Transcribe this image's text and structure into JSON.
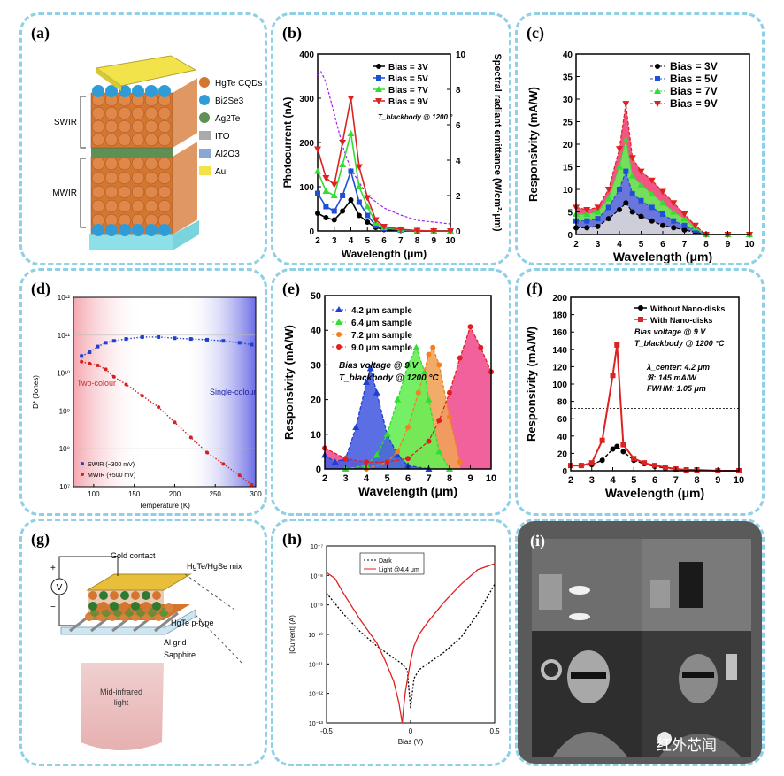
{
  "panels": {
    "a": {
      "label": "(a)",
      "legend": [
        "HgTe CQDs",
        "Bi2Se3",
        "Ag2Te",
        "ITO",
        "Al2O3",
        "Au"
      ],
      "legend_colors": [
        "#d4762f",
        "#2f9cd8",
        "#5e8f55",
        "#aaaaaa",
        "#8aa6d2",
        "#f3e34b"
      ],
      "side_labels": [
        "SWIR",
        "MWIR"
      ]
    },
    "g": {
      "label": "(g)",
      "labels": [
        "Gold contact",
        "HgTe/HgSe mix",
        "HgTe p-type",
        "Al grid",
        "Sapphire",
        "Mid-infrared light",
        "V",
        "+",
        "−"
      ]
    },
    "i": {
      "label": "(i)"
    }
  },
  "watermark": "红外芯闻",
  "chart_data": [
    {
      "id": "b",
      "label": "(b)",
      "type": "line",
      "xlabel": "Wavelength (μm)",
      "ylabel": "Photocurrent (nA)",
      "y2label": "Spectral radiant emittance (W/cm²·μm)",
      "annotation": "T_blackbody @ 1200 °",
      "xlim": [
        2,
        10
      ],
      "ylim": [
        0,
        400
      ],
      "y2lim": [
        0,
        10
      ],
      "xticks": [
        2,
        3,
        4,
        5,
        6,
        7,
        8,
        9,
        10
      ],
      "yticks": [
        0,
        100,
        200,
        300,
        400
      ],
      "y2ticks": [
        0,
        2,
        4,
        6,
        8,
        10
      ],
      "x": [
        2.0,
        2.5,
        3.0,
        3.5,
        4.0,
        4.5,
        5.0,
        5.5,
        6.0,
        7.0,
        8.0,
        9.0,
        10.0
      ],
      "series": [
        {
          "name": "Bias = 3V",
          "color": "#000000",
          "values": [
            40,
            30,
            25,
            45,
            70,
            35,
            20,
            8,
            3,
            1,
            0,
            0,
            0
          ]
        },
        {
          "name": "Bias = 5V",
          "color": "#1f4fd6",
          "values": [
            85,
            55,
            45,
            80,
            135,
            65,
            35,
            12,
            5,
            2,
            0,
            0,
            0
          ]
        },
        {
          "name": "Bias = 7V",
          "color": "#33dd33",
          "values": [
            135,
            90,
            80,
            150,
            220,
            100,
            55,
            18,
            8,
            3,
            1,
            0,
            0
          ]
        },
        {
          "name": "Bias = 9V",
          "color": "#dd2222",
          "values": [
            185,
            120,
            105,
            200,
            300,
            145,
            75,
            25,
            10,
            4,
            1,
            0,
            0
          ]
        }
      ],
      "y2_series": {
        "name": "emittance",
        "color": "#a020f0",
        "x": [
          2.0,
          2.2,
          2.5,
          3.0,
          3.5,
          4.0,
          5.0,
          6.0,
          7.0,
          8.0,
          9.0,
          10.0
        ],
        "values": [
          8.8,
          9.0,
          8.4,
          6.6,
          4.8,
          3.5,
          2.0,
          1.3,
          0.9,
          0.6,
          0.5,
          0.4
        ]
      }
    },
    {
      "id": "c",
      "label": "(c)",
      "type": "area",
      "xlabel": "Wavelength (μm)",
      "ylabel": "Responsivity (mA/W)",
      "xlim": [
        2,
        10
      ],
      "ylim": [
        0,
        40
      ],
      "xticks": [
        2,
        3,
        4,
        5,
        6,
        7,
        8,
        9,
        10
      ],
      "yticks": [
        0,
        5,
        10,
        15,
        20,
        25,
        30,
        35,
        40
      ],
      "x": [
        2.0,
        2.5,
        3.0,
        3.5,
        4.0,
        4.3,
        4.6,
        5.0,
        5.5,
        6.0,
        6.5,
        7.0,
        7.5,
        8.0,
        9.0,
        10.0
      ],
      "series": [
        {
          "name": "Bias = 3V",
          "color": "#000000",
          "fill": "#d8d8d8",
          "values": [
            1.5,
            1.5,
            1.8,
            3.5,
            5.5,
            7,
            5,
            4,
            3,
            2,
            1.5,
            1,
            0.5,
            0,
            0,
            0
          ]
        },
        {
          "name": "Bias = 5V",
          "color": "#1f4fd6",
          "fill": "#6a6ae8",
          "values": [
            3,
            3,
            3.5,
            6,
            10,
            14,
            9,
            7.5,
            6,
            4.5,
            3,
            2,
            1,
            0,
            0,
            0
          ]
        },
        {
          "name": "Bias = 7V",
          "color": "#33dd33",
          "fill": "#66ee55",
          "values": [
            4.5,
            4.5,
            5,
            8,
            15,
            21,
            13,
            11,
            9,
            7,
            5,
            3.5,
            1.5,
            0,
            0,
            0
          ]
        },
        {
          "name": "Bias = 9V",
          "color": "#dd2222",
          "fill": "#ee4477",
          "values": [
            6,
            5.5,
            6,
            10,
            19,
            29,
            17,
            14,
            12,
            9.5,
            7,
            4.5,
            2,
            0,
            0,
            0
          ]
        }
      ]
    },
    {
      "id": "d",
      "label": "(d)",
      "type": "scatter",
      "xlabel": "Temperature (K)",
      "ylabel": "D* (Jones)",
      "xlim": [
        75,
        300
      ],
      "ylog": true,
      "ylim_exp": [
        7,
        12
      ],
      "xticks": [
        100,
        150,
        200,
        250,
        300
      ],
      "yticks_exp": [
        7,
        8,
        9,
        10,
        11,
        12
      ],
      "region_labels": [
        "Two-colour",
        "Single-colour"
      ],
      "series": [
        {
          "name": "SWIR (−300 mV)",
          "color": "#1f3fd0",
          "x": [
            85,
            95,
            105,
            115,
            125,
            140,
            160,
            180,
            200,
            220,
            240,
            260,
            280,
            295
          ],
          "logvalues": [
            10.45,
            10.55,
            10.7,
            10.8,
            10.85,
            10.9,
            10.95,
            10.95,
            10.92,
            10.9,
            10.88,
            10.85,
            10.8,
            10.75
          ]
        },
        {
          "name": "MWIR (+500 mV)",
          "color": "#d02020",
          "x": [
            85,
            95,
            105,
            115,
            125,
            140,
            160,
            180,
            200,
            220,
            240,
            260,
            280,
            295
          ],
          "logvalues": [
            10.3,
            10.25,
            10.2,
            10.1,
            9.9,
            9.7,
            9.4,
            9.1,
            8.7,
            8.3,
            7.9,
            7.6,
            7.3,
            7.05
          ]
        }
      ]
    },
    {
      "id": "e",
      "label": "(e)",
      "type": "area",
      "xlabel": "Wavelength (μm)",
      "ylabel": "Responsivity (mA/W)",
      "annotation1": "Bias voltage @ 9 V",
      "annotation2": "T_blackbody @ 1200 °C",
      "xlim": [
        2,
        10
      ],
      "ylim": [
        0,
        50
      ],
      "xticks": [
        2,
        3,
        4,
        5,
        6,
        7,
        8,
        9,
        10
      ],
      "yticks": [
        0,
        10,
        20,
        30,
        40,
        50
      ],
      "series": [
        {
          "name": "4.2 μm sample",
          "color": "#1f3fd0",
          "fill": "#4a5ee0",
          "x": [
            2,
            2.5,
            3,
            3.5,
            4,
            4.2,
            4.5,
            5,
            5.5,
            6,
            7
          ],
          "values": [
            4,
            2,
            3,
            12,
            25,
            29,
            22,
            10,
            4,
            1,
            0
          ]
        },
        {
          "name": "6.4 μm sample",
          "color": "#33dd33",
          "fill": "#66ee55",
          "x": [
            3,
            4,
            4.5,
            5,
            5.5,
            6,
            6.4,
            6.8,
            7,
            7.5,
            8
          ],
          "values": [
            0,
            1,
            4,
            10,
            20,
            30,
            35,
            28,
            20,
            5,
            0
          ]
        },
        {
          "name": "7.2 μm sample",
          "color": "#f08020",
          "fill": "#f2a25a",
          "x": [
            4,
            5,
            5.5,
            6,
            6.5,
            7,
            7.2,
            7.5,
            8,
            8.5
          ],
          "values": [
            0,
            2,
            5,
            12,
            22,
            33,
            35,
            30,
            15,
            2
          ]
        },
        {
          "name": "9.0 μm sample",
          "color": "#e02020",
          "fill": "#f05090",
          "x": [
            2,
            3,
            4,
            5,
            6,
            7,
            7.5,
            8,
            8.5,
            9,
            9.5,
            10
          ],
          "values": [
            6,
            3,
            2,
            2,
            3,
            8,
            14,
            22,
            32,
            41,
            35,
            28
          ]
        }
      ]
    },
    {
      "id": "f",
      "label": "(f)",
      "type": "line",
      "xlabel": "Wavelength (μm)",
      "ylabel": "Responsivity (mA/W)",
      "annotation1": "Bias voltage @ 9 V",
      "annotation2": "T_blackbody @ 1200 °C",
      "annotation3": "λ_center: 4.2 μm",
      "annotation4": "ℜ: 145 mA/W",
      "annotation5": "FWHM: 1.05 μm",
      "xlim": [
        2,
        10
      ],
      "ylim": [
        0,
        200
      ],
      "hline": 72,
      "xticks": [
        2,
        3,
        4,
        5,
        6,
        7,
        8,
        9,
        10
      ],
      "yticks": [
        0,
        20,
        40,
        60,
        80,
        100,
        120,
        140,
        160,
        180,
        200
      ],
      "x": [
        2,
        2.5,
        3,
        3.5,
        4,
        4.2,
        4.5,
        5,
        5.5,
        6,
        6.5,
        7,
        7.5,
        8,
        9,
        10
      ],
      "series": [
        {
          "name": "Without Nano-disks",
          "color": "#000000",
          "values": [
            6,
            6,
            7,
            12,
            25,
            28,
            22,
            12,
            8,
            5,
            3,
            2,
            1,
            1,
            0,
            0
          ]
        },
        {
          "name": "With Nano-disks",
          "color": "#dd2222",
          "values": [
            6,
            6,
            9,
            35,
            110,
            145,
            30,
            14,
            9,
            6,
            4,
            2,
            1,
            1,
            0,
            0
          ]
        }
      ]
    },
    {
      "id": "h",
      "label": "(h)",
      "type": "line",
      "xlabel": "Bias (V)",
      "ylabel": "|Current| (A)",
      "xlim": [
        -0.5,
        0.5
      ],
      "ylog": true,
      "ylim_exp": [
        -13,
        -7
      ],
      "xticks": [
        -0.5,
        0,
        0.5
      ],
      "yticks_exp": [
        -13,
        -12,
        -11,
        -10,
        -9,
        -8,
        -7
      ],
      "series": [
        {
          "name": "Dark",
          "color": "#000000",
          "dash": true,
          "x": [
            -0.5,
            -0.4,
            -0.3,
            -0.2,
            -0.1,
            -0.05,
            -0.02,
            0,
            0.02,
            0.05,
            0.1,
            0.2,
            0.3,
            0.4,
            0.5
          ],
          "logvalues": [
            -8.6,
            -9.3,
            -9.9,
            -10.4,
            -10.8,
            -11,
            -11.2,
            -12.5,
            -11.5,
            -11.2,
            -11,
            -10.6,
            -10.1,
            -9.3,
            -8.3
          ]
        },
        {
          "name": "Light @4.4 μm",
          "color": "#e02020",
          "x": [
            -0.5,
            -0.45,
            -0.4,
            -0.3,
            -0.2,
            -0.15,
            -0.1,
            -0.07,
            -0.05,
            -0.04,
            -0.03,
            0,
            0.02,
            0.05,
            0.1,
            0.2,
            0.3,
            0.4,
            0.5
          ],
          "logvalues": [
            -7.9,
            -8.1,
            -8.6,
            -9.5,
            -10.3,
            -10.9,
            -11.6,
            -12.3,
            -13,
            -12.4,
            -11.9,
            -10.9,
            -10.4,
            -10,
            -9.6,
            -8.9,
            -8.3,
            -7.8,
            -7.6
          ]
        }
      ]
    }
  ]
}
